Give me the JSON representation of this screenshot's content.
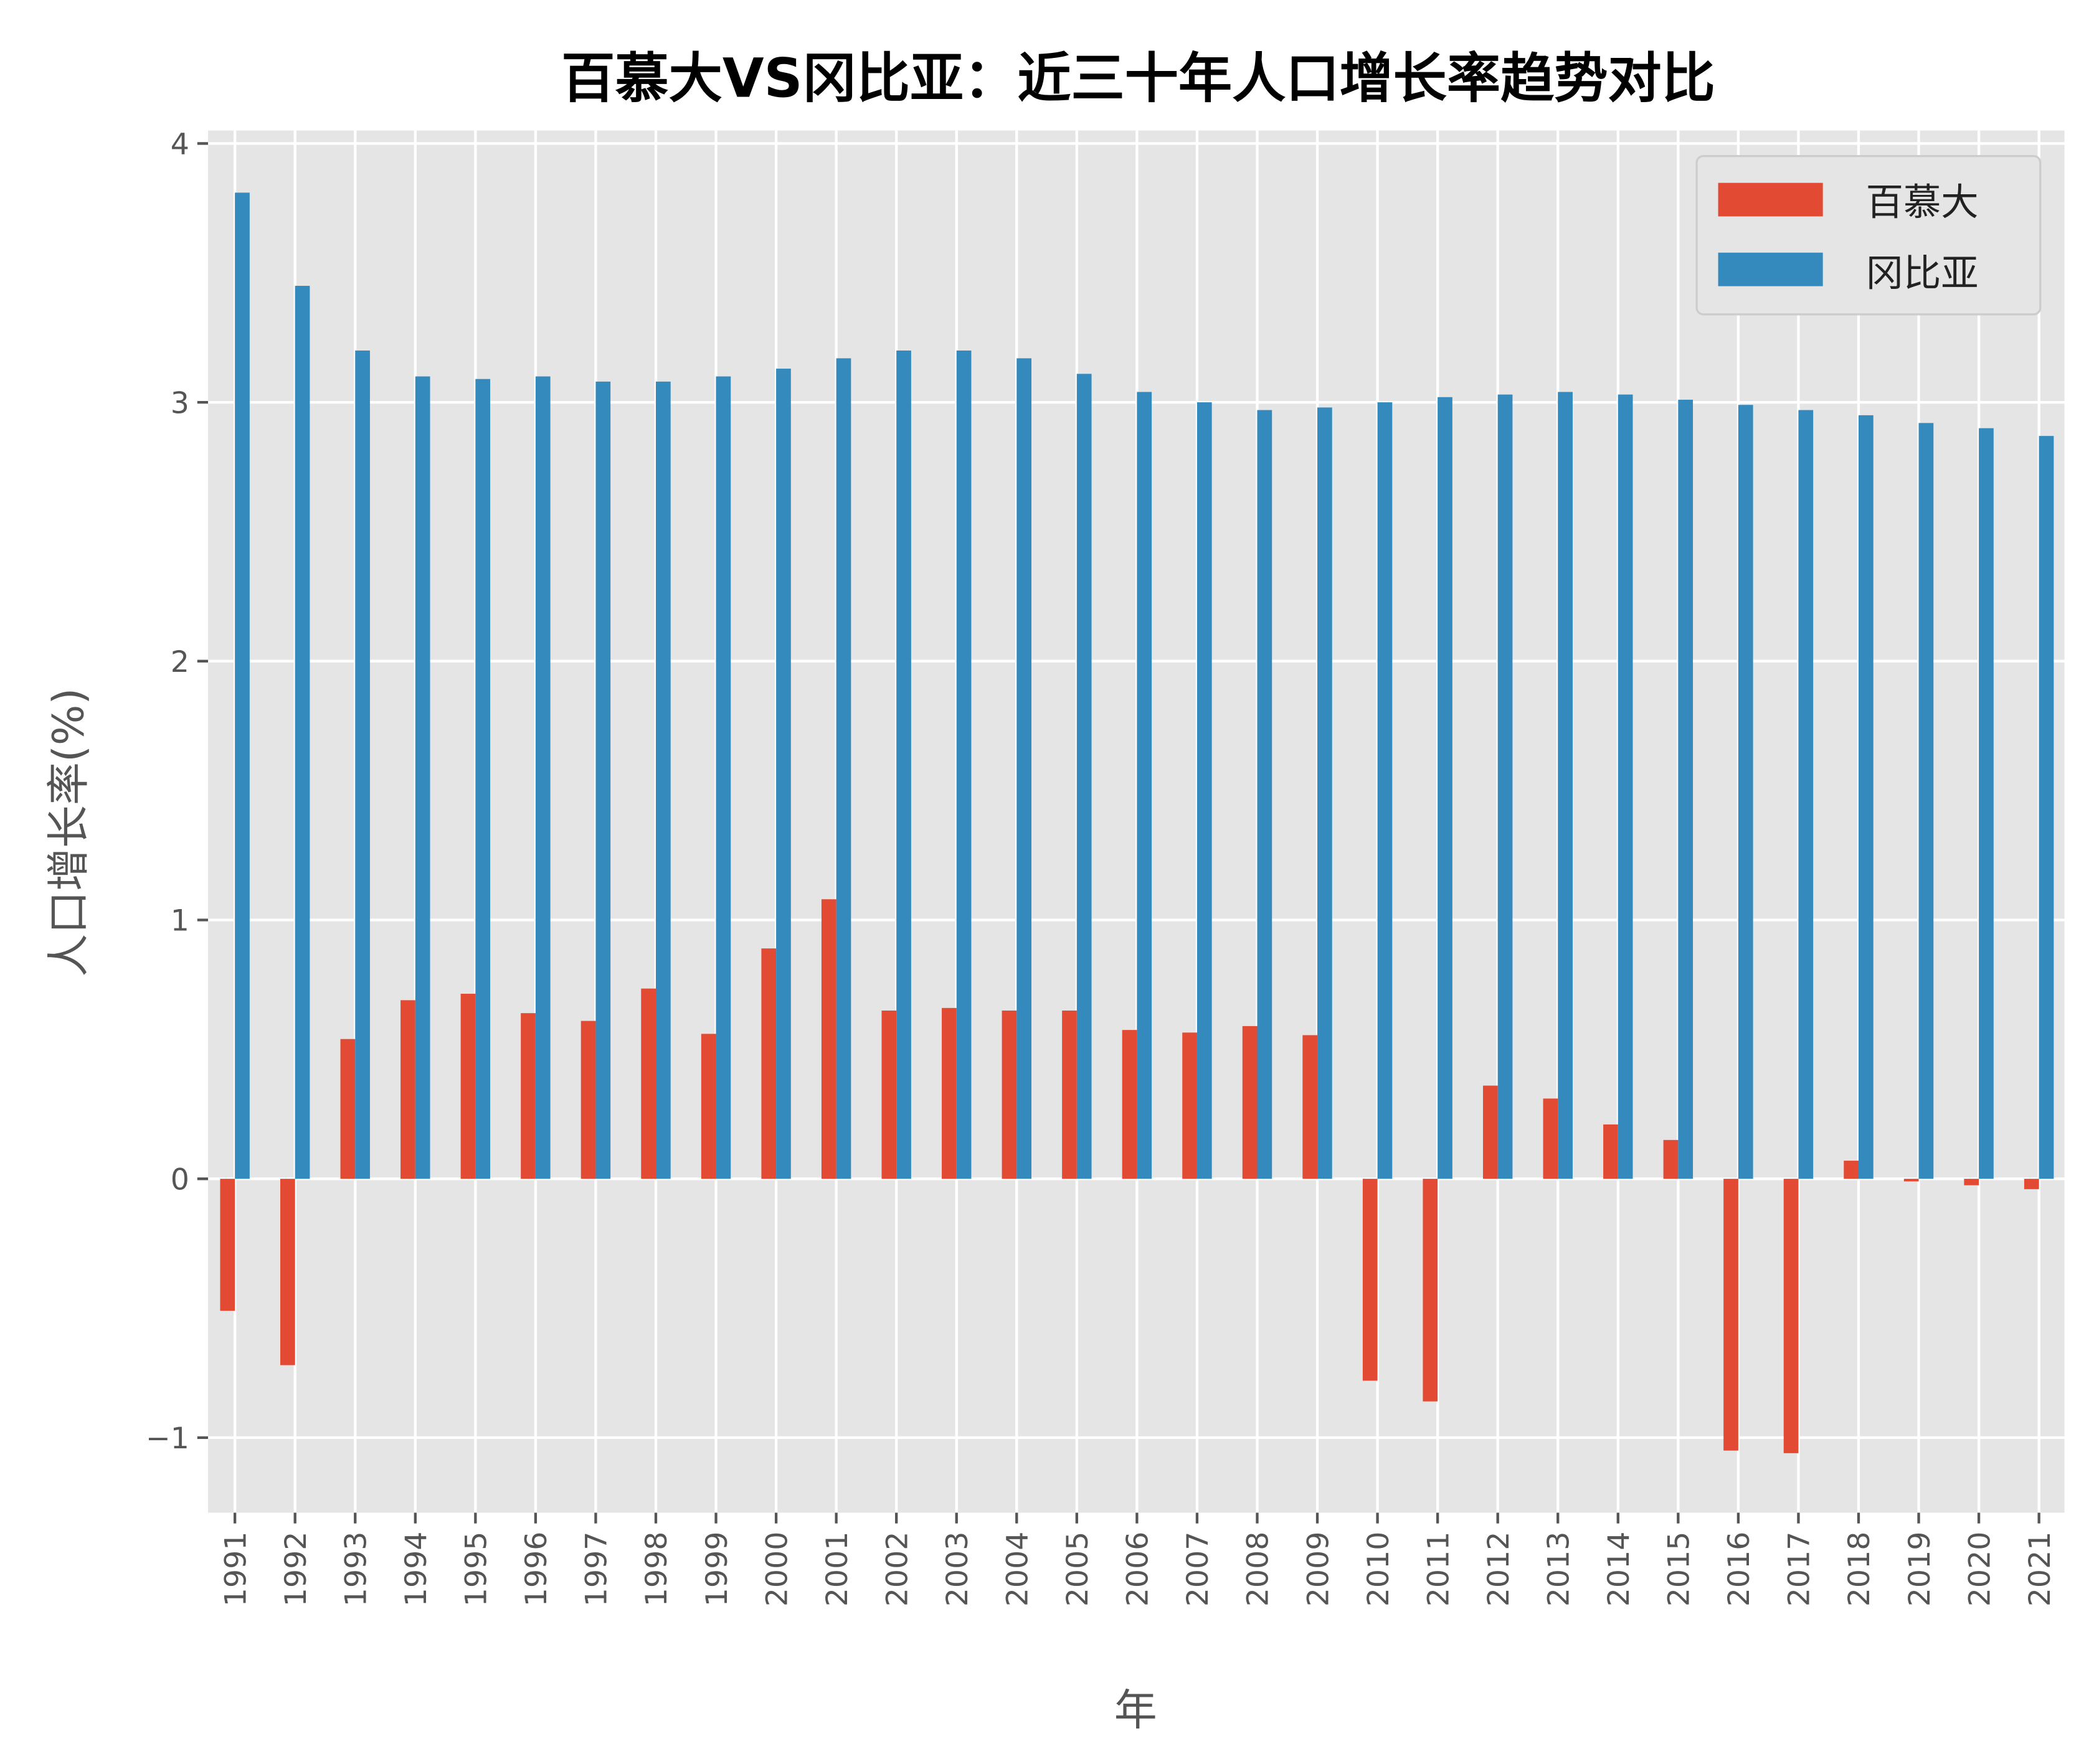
{
  "chart_data": {
    "type": "bar",
    "title": "百慕大VS冈比亚：近三十年人口增长率趋势对比",
    "xlabel": "年",
    "ylabel": "人口增长率(%)",
    "ylim": [
      -1.29,
      4.05
    ],
    "yticks": [
      "−1",
      "0",
      "1",
      "2",
      "3",
      "4"
    ],
    "ytick_values": [
      -1,
      0,
      1,
      2,
      3,
      4
    ],
    "grid": true,
    "legend_position": "top-right",
    "categories": [
      "1991",
      "1992",
      "1993",
      "1994",
      "1995",
      "1996",
      "1997",
      "1998",
      "1999",
      "2000",
      "2001",
      "2002",
      "2003",
      "2004",
      "2005",
      "2006",
      "2007",
      "2008",
      "2009",
      "2010",
      "2011",
      "2012",
      "2013",
      "2014",
      "2015",
      "2016",
      "2017",
      "2018",
      "2019",
      "2020",
      "2021"
    ],
    "series": [
      {
        "name": "百慕大",
        "color": "#E24A33",
        "values": [
          -0.51,
          -0.72,
          0.54,
          0.69,
          0.715,
          0.64,
          0.61,
          0.735,
          0.56,
          0.89,
          1.08,
          0.65,
          0.66,
          0.65,
          0.65,
          0.575,
          0.565,
          0.59,
          0.555,
          -0.78,
          -0.86,
          0.36,
          0.31,
          0.21,
          0.15,
          -1.05,
          -1.06,
          0.07,
          -0.01,
          -0.025,
          -0.04
        ]
      },
      {
        "name": "冈比亚",
        "color": "#348ABD",
        "values": [
          3.81,
          3.45,
          3.2,
          3.1,
          3.09,
          3.1,
          3.08,
          3.08,
          3.1,
          3.13,
          3.17,
          3.2,
          3.2,
          3.17,
          3.11,
          3.04,
          3.0,
          2.97,
          2.98,
          3.0,
          3.02,
          3.03,
          3.04,
          3.03,
          3.01,
          2.99,
          2.97,
          2.95,
          2.92,
          2.9,
          2.87
        ]
      }
    ]
  }
}
